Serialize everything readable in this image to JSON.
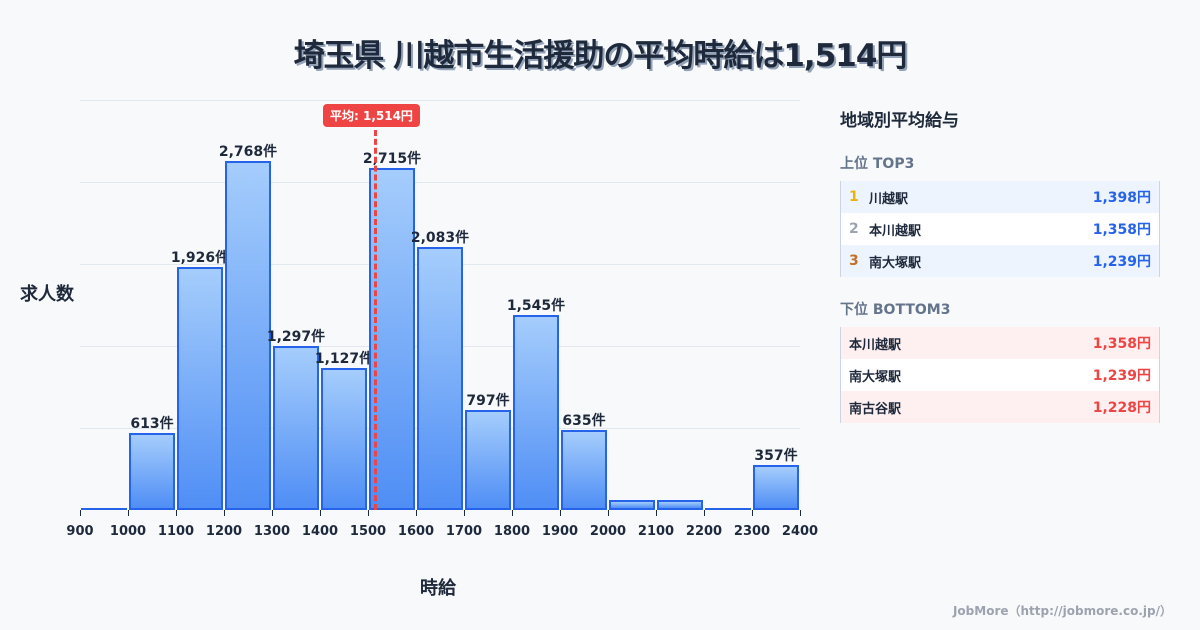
{
  "title": "埼玉県 川越市生活援助の平均時給は1,514円",
  "chart_data": {
    "type": "bar",
    "title": "埼玉県 川越市生活援助の平均時給は1,514円",
    "xlabel": "時給",
    "ylabel": "求人数",
    "x_ticks": [
      "900",
      "1000",
      "1100",
      "1200",
      "1300",
      "1400",
      "1500",
      "1600",
      "1700",
      "1800",
      "1900",
      "2000",
      "2100",
      "2200",
      "2300",
      "2400"
    ],
    "categories": [
      "900-1000",
      "1000-1100",
      "1100-1200",
      "1200-1300",
      "1300-1400",
      "1400-1500",
      "1500-1600",
      "1600-1700",
      "1700-1800",
      "1800-1900",
      "1900-2000",
      "2000-2100",
      "2100-2200",
      "2200-2300",
      "2300-2400"
    ],
    "values": [
      0,
      613,
      1926,
      2768,
      1297,
      1127,
      2715,
      2083,
      797,
      1545,
      635,
      60,
      60,
      0,
      357
    ],
    "labels": [
      "",
      "613件",
      "1,926件",
      "2,768件",
      "1,297件",
      "1,127件",
      "2,715件",
      "2,083件",
      "797件",
      "1,545件",
      "635件",
      "",
      "",
      "",
      "357件"
    ],
    "xlim": [
      900,
      2400
    ],
    "grid": true,
    "average": {
      "value": 1514,
      "label": "平均: 1,514円"
    }
  },
  "axis": {
    "ylabel": "求人数",
    "xlabel": "時給"
  },
  "side": {
    "title": "地域別平均給与",
    "top_title": "上位 TOP3",
    "top": [
      {
        "rank": "1",
        "name": "川越駅",
        "value": "1,398円",
        "color": "#eab308"
      },
      {
        "rank": "2",
        "name": "本川越駅",
        "value": "1,358円",
        "color": "#9ca3af"
      },
      {
        "rank": "3",
        "name": "南大塚駅",
        "value": "1,239円",
        "color": "#c2702a"
      }
    ],
    "bottom_title": "下位 BOTTOM3",
    "bottom": [
      {
        "name": "本川越駅",
        "value": "1,358円"
      },
      {
        "name": "南大塚駅",
        "value": "1,239円"
      },
      {
        "name": "南古谷駅",
        "value": "1,228円"
      }
    ]
  },
  "credit": "JobMore（http://jobmore.co.jp/）"
}
